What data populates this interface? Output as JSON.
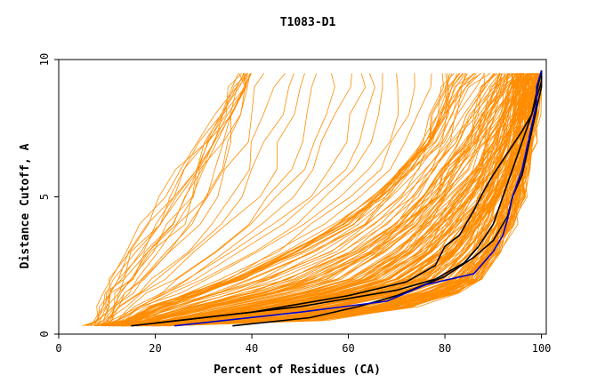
{
  "chart_data": {
    "type": "line",
    "title": "T1083-D1",
    "xlabel": "Percent of Residues (CA)",
    "ylabel": "Distance Cutoff, A",
    "xlim": [
      0,
      101
    ],
    "ylim": [
      0,
      10
    ],
    "x_ticks": [
      0,
      20,
      40,
      60,
      80,
      100
    ],
    "y_ticks": [
      0,
      5,
      10
    ],
    "grid": false,
    "colors": {
      "orange": "#ff8c00",
      "black": "#000000",
      "blue": "#0000cc"
    },
    "background_families": [
      {
        "name": "",
        "color": "#ff8c00",
        "ys": [
          0.3,
          0.5,
          1.0,
          1.5,
          2.0,
          3.0,
          4.0,
          5.0,
          6.0,
          7.0,
          8.0,
          9.0,
          9.5
        ],
        "profiles": [
          [
            6,
            8,
            9,
            10,
            11,
            14,
            18,
            21,
            25,
            29,
            33,
            36,
            38
          ],
          [
            8,
            10,
            12,
            14,
            17,
            22,
            27,
            31,
            33,
            35,
            37,
            39,
            40
          ],
          [
            10,
            14,
            20,
            28,
            36,
            48,
            58,
            66,
            72,
            76,
            78,
            80,
            80
          ],
          [
            10,
            15,
            22,
            30,
            38,
            50,
            60,
            67,
            72,
            77,
            80,
            83,
            85
          ],
          [
            11,
            18,
            28,
            40,
            50,
            62,
            70,
            76,
            80,
            84,
            87,
            90,
            92
          ],
          [
            11,
            20,
            32,
            46,
            56,
            66,
            73,
            78,
            82,
            86,
            89,
            92,
            94
          ],
          [
            12,
            24,
            40,
            54,
            64,
            73,
            79,
            84,
            88,
            91,
            93,
            95,
            96
          ],
          [
            13,
            28,
            46,
            60,
            70,
            78,
            84,
            88,
            91,
            93,
            95,
            96,
            97
          ],
          [
            14,
            32,
            52,
            66,
            75,
            82,
            87,
            90,
            93,
            95,
            96,
            97,
            98
          ],
          [
            15,
            36,
            58,
            72,
            80,
            86,
            89,
            92,
            94,
            96,
            97,
            98,
            99
          ],
          [
            12,
            22,
            36,
            50,
            60,
            70,
            76,
            81,
            85,
            88,
            91,
            93,
            94
          ],
          [
            16,
            40,
            62,
            75,
            82,
            87,
            90,
            93,
            95,
            96,
            97,
            98,
            99
          ],
          [
            18,
            44,
            66,
            78,
            84,
            89,
            92,
            94,
            96,
            97,
            98,
            99,
            100
          ],
          [
            20,
            50,
            70,
            80,
            86,
            90,
            93,
            95,
            96,
            97,
            98,
            99,
            100
          ],
          [
            22,
            55,
            74,
            82,
            87,
            91,
            94,
            96,
            97,
            98,
            99,
            99,
            100
          ],
          [
            14,
            30,
            48,
            62,
            71,
            79,
            85,
            89,
            92,
            94,
            95,
            96,
            97
          ]
        ]
      }
    ],
    "series": [
      {
        "name": "",
        "color": "#000000",
        "x": [
          15,
          30,
          50,
          70,
          78,
          84,
          87,
          90,
          92,
          94,
          96,
          98,
          99,
          100,
          100
        ],
        "y": [
          0.3,
          0.6,
          1.0,
          1.6,
          2.0,
          2.6,
          3.2,
          4.0,
          5.0,
          6.0,
          7.0,
          8.0,
          8.6,
          9.2,
          9.6
        ]
      },
      {
        "name": "",
        "color": "#000000",
        "x": [
          20,
          40,
          60,
          72,
          78,
          80,
          83,
          86,
          88,
          90,
          93,
          96,
          98,
          99,
          100
        ],
        "y": [
          0.4,
          0.8,
          1.4,
          1.9,
          2.5,
          3.2,
          3.6,
          4.5,
          5.2,
          5.8,
          6.6,
          7.4,
          8.0,
          8.8,
          9.6
        ]
      },
      {
        "name": "",
        "color": "#000000",
        "x": [
          36,
          52,
          62,
          70,
          80,
          86,
          90,
          93,
          94,
          96,
          97,
          98,
          99,
          100,
          100
        ],
        "y": [
          0.3,
          0.6,
          1.0,
          1.4,
          2.1,
          2.8,
          3.4,
          4.3,
          5.0,
          5.8,
          6.6,
          7.4,
          8.2,
          9.0,
          9.6
        ]
      },
      {
        "name": "",
        "color": "#0000cc",
        "x": [
          24,
          50,
          68,
          76,
          86,
          90,
          92,
          93,
          94,
          96,
          97,
          98,
          99,
          99,
          100
        ],
        "y": [
          0.3,
          0.8,
          1.2,
          1.8,
          2.2,
          3.0,
          3.6,
          4.2,
          5.0,
          6.0,
          6.8,
          7.6,
          8.4,
          9.0,
          9.6
        ]
      }
    ]
  }
}
